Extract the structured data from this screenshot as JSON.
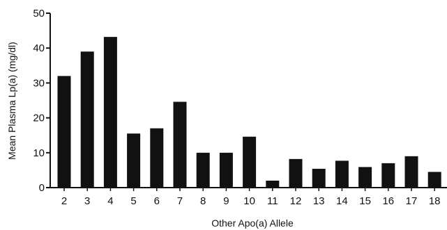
{
  "chart_data": {
    "type": "bar",
    "categories": [
      "2",
      "3",
      "4",
      "5",
      "6",
      "7",
      "8",
      "9",
      "10",
      "11",
      "12",
      "13",
      "14",
      "15",
      "16",
      "17",
      "18"
    ],
    "values": [
      32,
      39,
      43.2,
      15.5,
      17,
      24.6,
      10,
      10,
      14.6,
      2,
      8.2,
      5.4,
      7.7,
      5.9,
      7,
      9,
      4.5
    ],
    "title": "",
    "xlabel": "Other Apo(a) Allele",
    "ylabel": "Mean Plasma Lp(a) (mg/dl)",
    "ylim": [
      0,
      50
    ],
    "yticks": [
      0,
      10,
      20,
      30,
      40,
      50
    ],
    "grid": false,
    "bar_color": "#111111"
  }
}
